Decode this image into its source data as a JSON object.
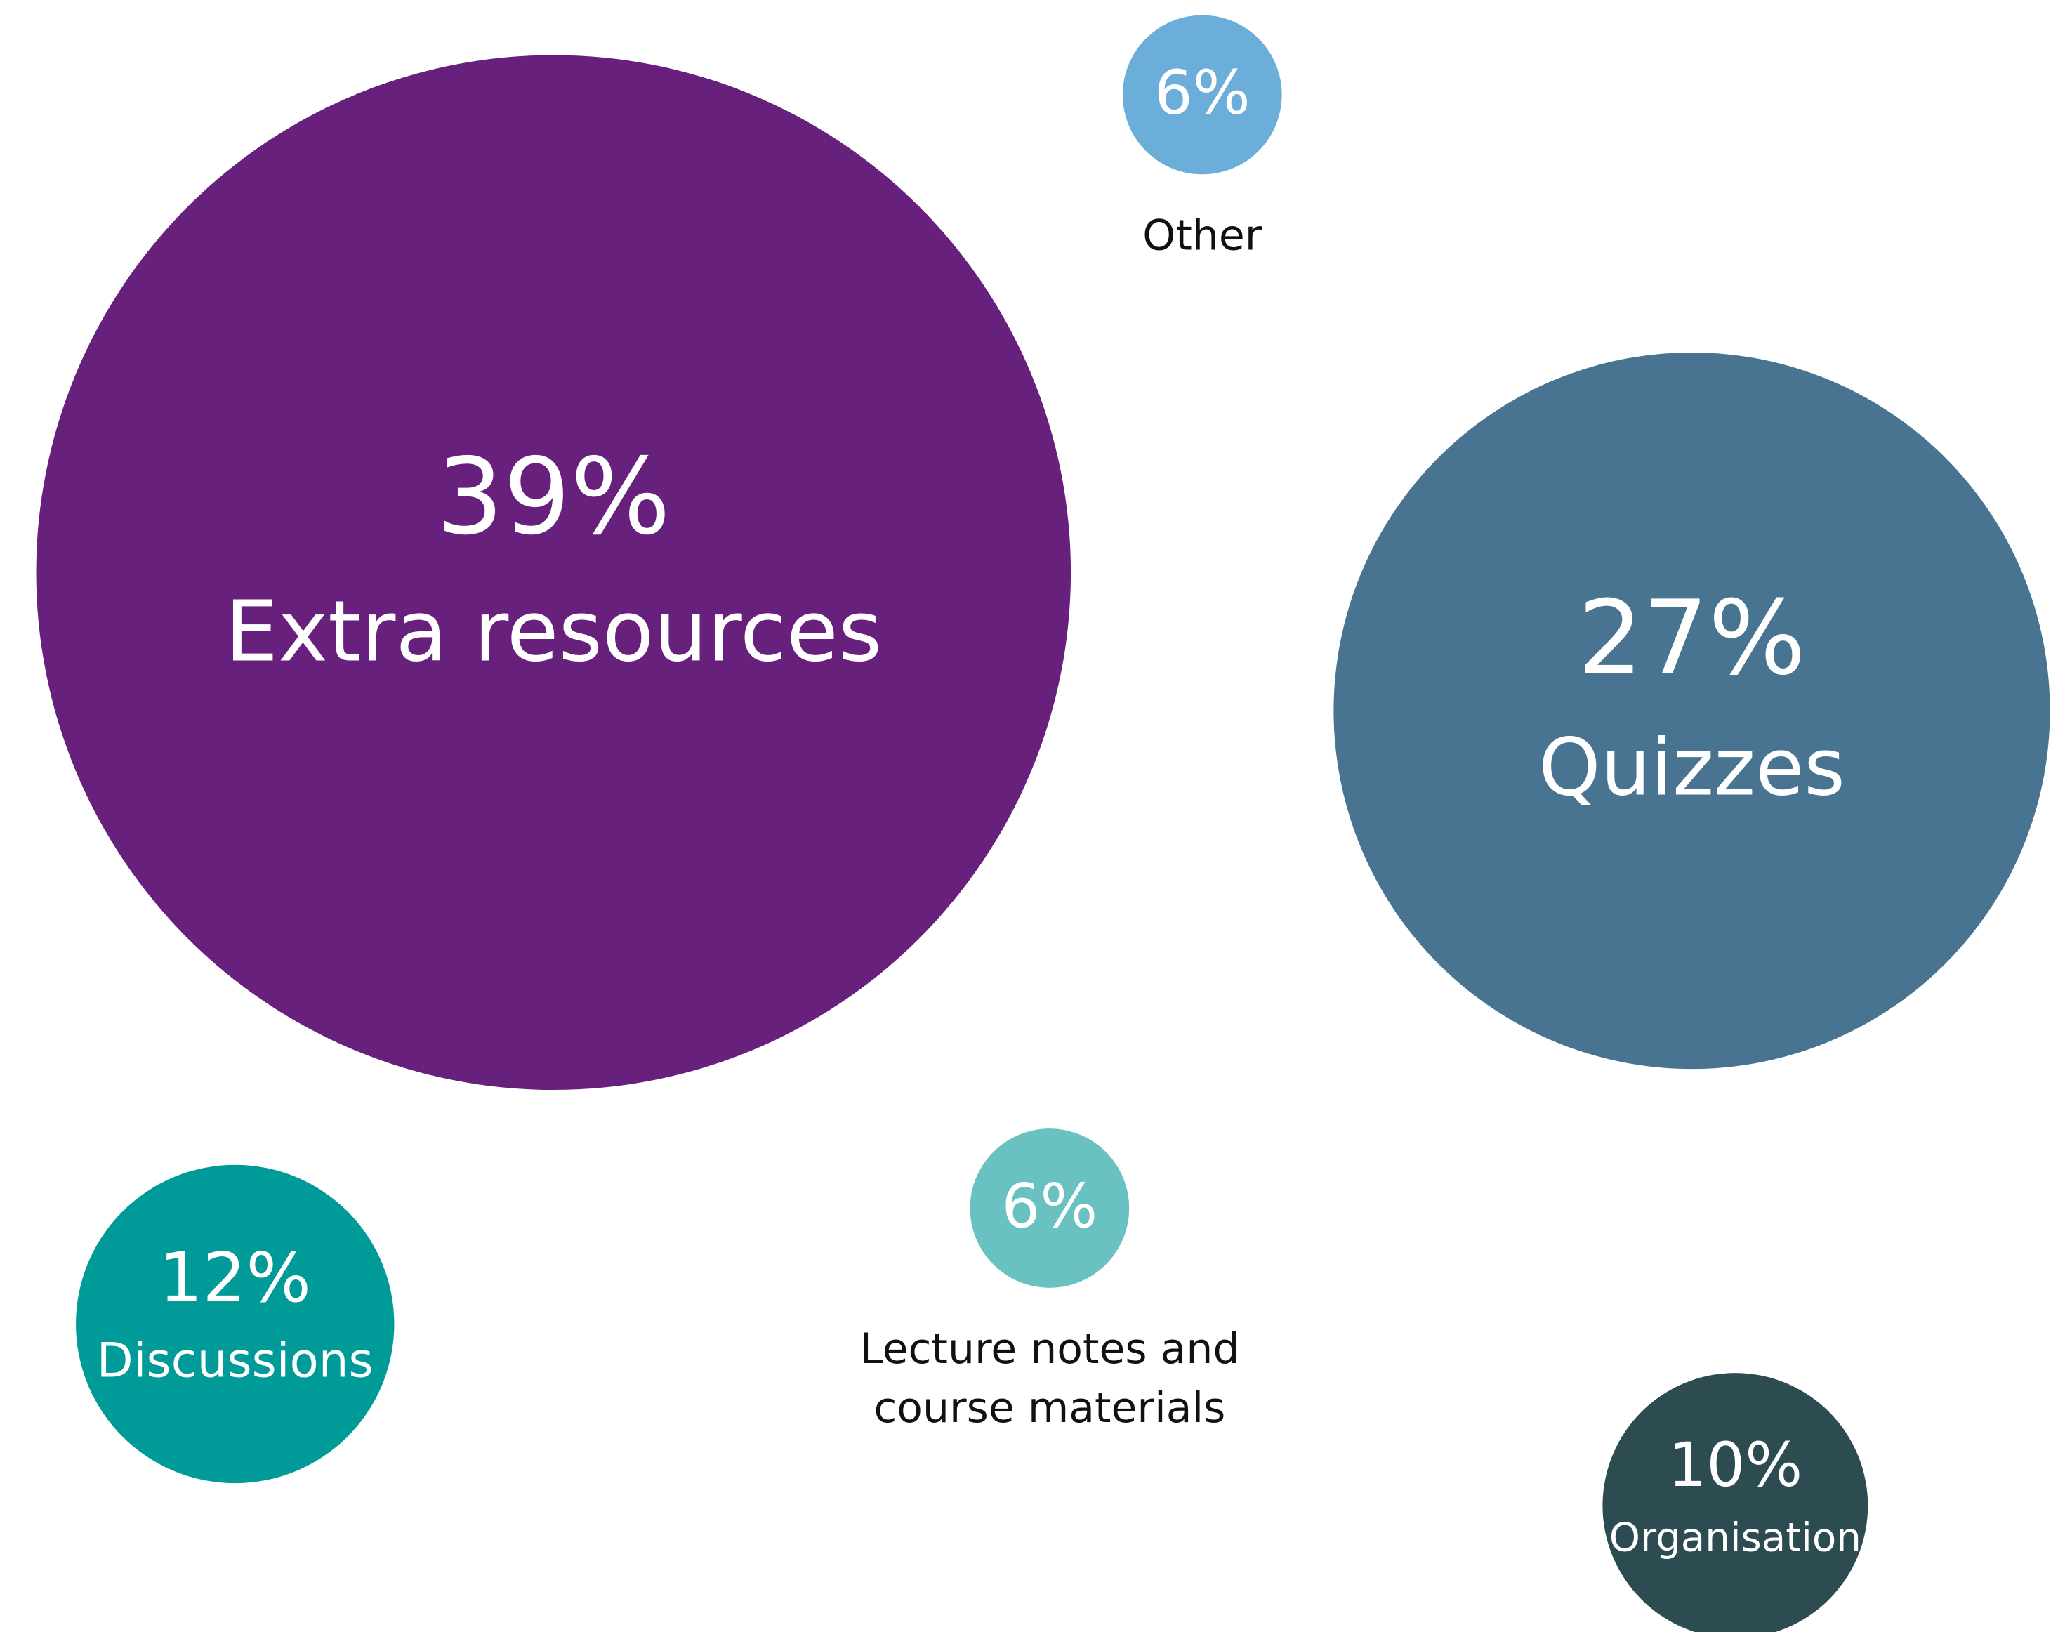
{
  "chart_data": {
    "type": "bubble",
    "categories": [
      "Extra resources",
      "Quizzes",
      "Discussions",
      "Lecture notes and course materials",
      "Other",
      "Organisation"
    ],
    "values": [
      39,
      27,
      12,
      6,
      6,
      10
    ],
    "value_labels": [
      "39%",
      "27%",
      "12%",
      "6%",
      "6%",
      "10%"
    ],
    "colors": [
      "#68207d",
      "#487491",
      "#009a98",
      "#6ac1c2",
      "#6aaed9",
      "#2c4c52"
    ]
  }
}
